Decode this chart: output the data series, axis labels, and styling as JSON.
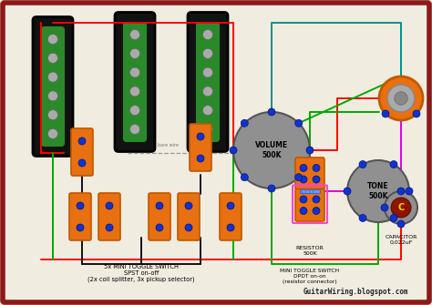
{
  "bg_color": "#f0ece0",
  "border_color": "#8B1A1A",
  "pickup_black": "#111111",
  "pickup_green": "#2a8a2a",
  "pickup_dot": "#aaaaaa",
  "switch_orange": "#E87010",
  "switch_dark_orange": "#c05800",
  "dot_blue": "#1133cc",
  "pot_gray": "#909090",
  "wire_red": "#ff0000",
  "wire_green": "#00aa00",
  "wire_black": "#111111",
  "wire_magenta": "#dd00dd",
  "wire_teal": "#009090",
  "wire_gray": "#999999",
  "label_5x": "5x MINI TOGGLE SWITCH\nSPST on-off\n(2x coil splitter, 3x pickup selector)",
  "label_dpdt": "MINI TOGGLE SWITCH\nDPDT on-on\n(resistor connector)",
  "label_resistor": "RESISTOR\n500K",
  "label_cap": "CAPACITOR\n0,022uF",
  "watermark": "GuitarWiring.blogspot.com"
}
